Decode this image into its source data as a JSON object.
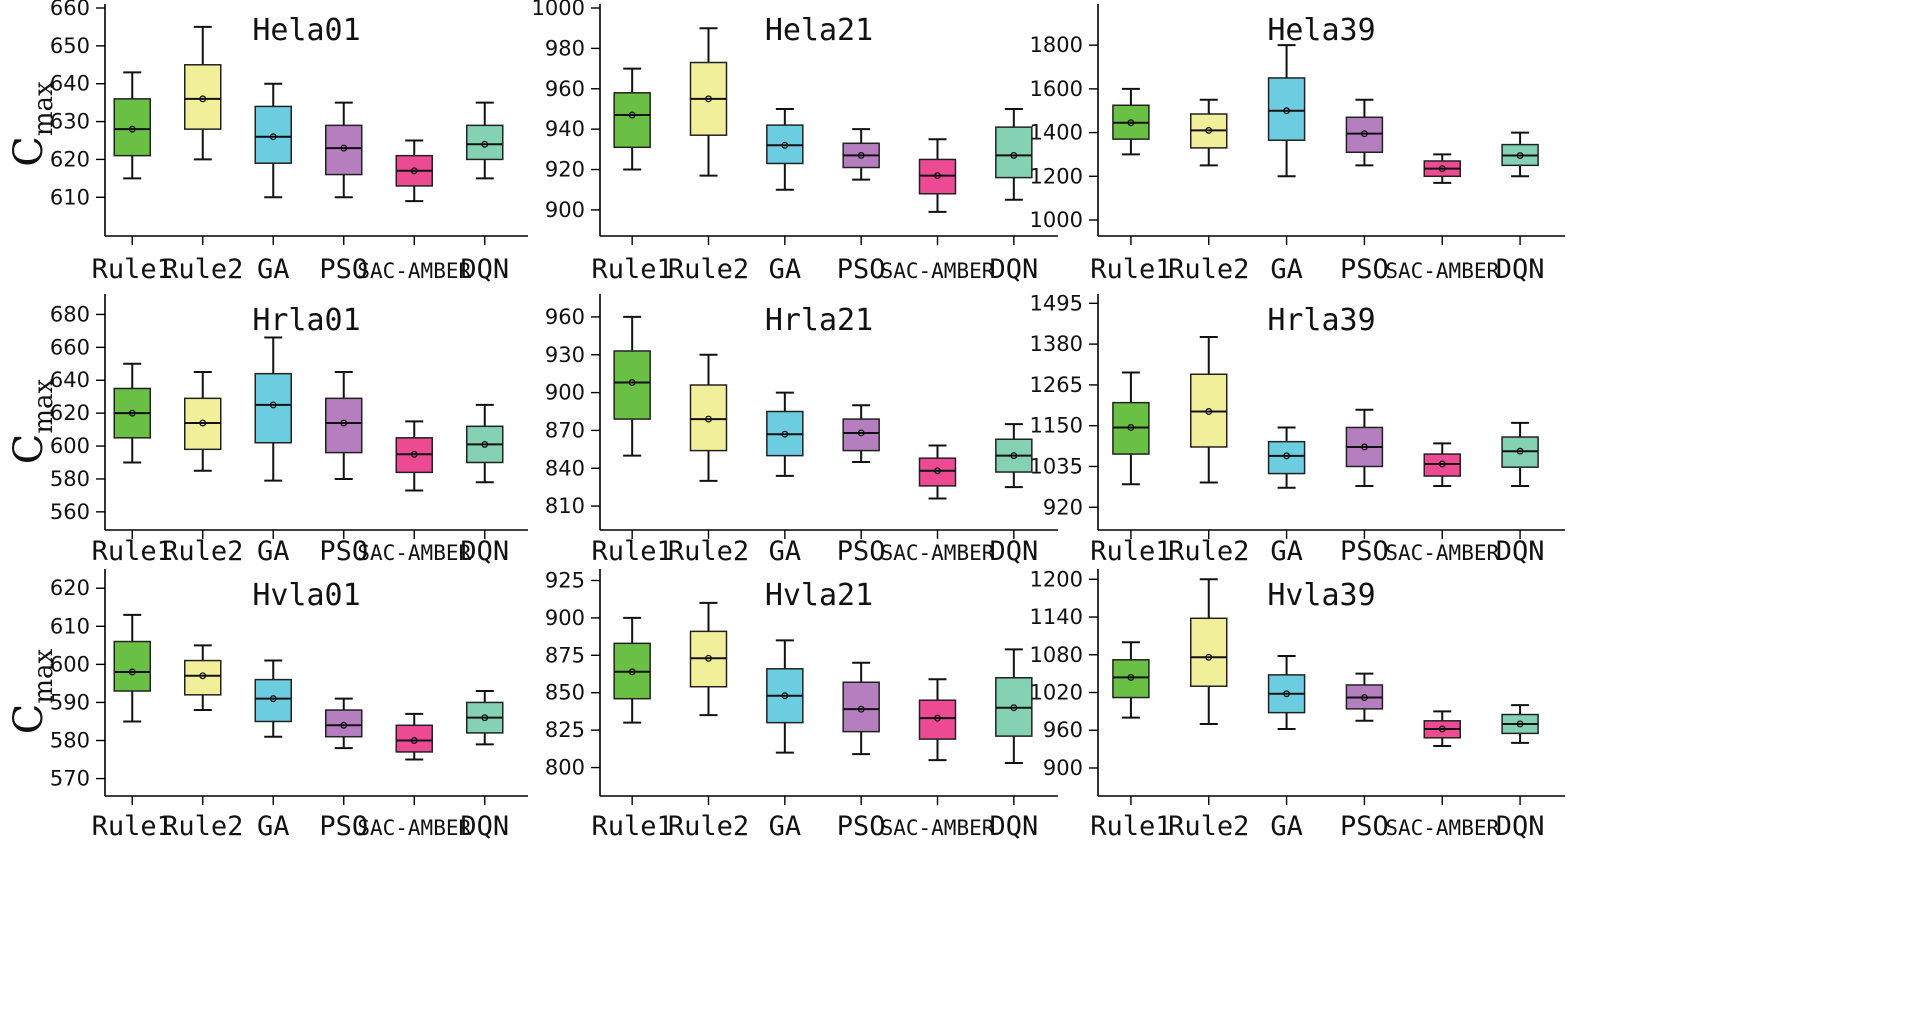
{
  "colors": {
    "Rule1": "#6abf45",
    "Rule2": "#f2ef9a",
    "GA": "#6ccde0",
    "PSO": "#b57fbf",
    "SAC-AMBER": "#ec4a93",
    "DQN": "#84d1b3"
  },
  "ylabel": {
    "main": "C",
    "sub": "max"
  },
  "chart_data": [
    {
      "type": "box",
      "title": "Hela01",
      "categories": [
        "Rule1",
        "Rule2",
        "GA",
        "PSO",
        "SAC-AMBER",
        "DQN"
      ],
      "yticks": [
        610,
        620,
        630,
        640,
        650,
        660
      ],
      "ylim": [
        604,
        660
      ],
      "boxes": [
        {
          "min": 615,
          "q1": 621,
          "median": 628,
          "q3": 636,
          "max": 643,
          "mean": 628
        },
        {
          "min": 620,
          "q1": 628,
          "median": 636,
          "q3": 645,
          "max": 655,
          "mean": 636
        },
        {
          "min": 610,
          "q1": 619,
          "median": 626,
          "q3": 634,
          "max": 640,
          "mean": 626
        },
        {
          "min": 610,
          "q1": 616,
          "median": 623,
          "q3": 629,
          "max": 635,
          "mean": 623
        },
        {
          "min": 609,
          "q1": 613,
          "median": 617,
          "q3": 621,
          "max": 625,
          "mean": 617
        },
        {
          "min": 615,
          "q1": 620,
          "median": 624,
          "q3": 629,
          "max": 635,
          "mean": 624
        }
      ]
    },
    {
      "type": "box",
      "title": "Hela21",
      "categories": [
        "Rule1",
        "Rule2",
        "GA",
        "PSO",
        "SAC-AMBER",
        "DQN"
      ],
      "yticks": [
        900,
        920,
        940,
        960,
        980,
        1000
      ],
      "ylim": [
        895,
        1000
      ],
      "boxes": [
        {
          "min": 920,
          "q1": 931,
          "median": 947,
          "q3": 958,
          "max": 970,
          "mean": 947
        },
        {
          "min": 917,
          "q1": 937,
          "median": 955,
          "q3": 973,
          "max": 990,
          "mean": 955
        },
        {
          "min": 910,
          "q1": 923,
          "median": 932,
          "q3": 942,
          "max": 950,
          "mean": 932
        },
        {
          "min": 915,
          "q1": 921,
          "median": 927,
          "q3": 933,
          "max": 940,
          "mean": 927
        },
        {
          "min": 899,
          "q1": 908,
          "median": 917,
          "q3": 925,
          "max": 935,
          "mean": 917
        },
        {
          "min": 905,
          "q1": 916,
          "median": 927,
          "q3": 941,
          "max": 950,
          "mean": 927
        }
      ]
    },
    {
      "type": "box",
      "title": "Hela39",
      "categories": [
        "Rule1",
        "Rule2",
        "GA",
        "PSO",
        "SAC-AMBER",
        "DQN"
      ],
      "yticks": [
        1000,
        1200,
        1400,
        1600,
        1800
      ],
      "ylim": [
        1000,
        1970
      ],
      "boxes": [
        {
          "min": 1300,
          "q1": 1370,
          "median": 1445,
          "q3": 1525,
          "max": 1600,
          "mean": 1445
        },
        {
          "min": 1250,
          "q1": 1330,
          "median": 1410,
          "q3": 1485,
          "max": 1550,
          "mean": 1410
        },
        {
          "min": 1200,
          "q1": 1365,
          "median": 1500,
          "q3": 1650,
          "max": 1800,
          "mean": 1500
        },
        {
          "min": 1250,
          "q1": 1310,
          "median": 1395,
          "q3": 1470,
          "max": 1550,
          "mean": 1395
        },
        {
          "min": 1170,
          "q1": 1200,
          "median": 1235,
          "q3": 1270,
          "max": 1300,
          "mean": 1235
        },
        {
          "min": 1200,
          "q1": 1250,
          "median": 1295,
          "q3": 1345,
          "max": 1400,
          "mean": 1295
        }
      ]
    },
    {
      "type": "box",
      "title": "Hrla01",
      "categories": [
        "Rule1",
        "Rule2",
        "GA",
        "PSO",
        "SAC-AMBER",
        "DQN"
      ],
      "yticks": [
        560,
        580,
        600,
        620,
        640,
        660,
        680
      ],
      "ylim": [
        552,
        690
      ],
      "boxes": [
        {
          "min": 590,
          "q1": 605,
          "median": 620,
          "q3": 635,
          "max": 650,
          "mean": 620
        },
        {
          "min": 585,
          "q1": 598,
          "median": 614,
          "q3": 629,
          "max": 645,
          "mean": 614
        },
        {
          "min": 579,
          "q1": 602,
          "median": 625,
          "q3": 644,
          "max": 666,
          "mean": 625
        },
        {
          "min": 580,
          "q1": 596,
          "median": 614,
          "q3": 629,
          "max": 645,
          "mean": 614
        },
        {
          "min": 573,
          "q1": 584,
          "median": 595,
          "q3": 605,
          "max": 615,
          "mean": 595
        },
        {
          "min": 578,
          "q1": 590,
          "median": 601,
          "q3": 612,
          "max": 625,
          "mean": 601
        }
      ]
    },
    {
      "type": "box",
      "title": "Hrla21",
      "categories": [
        "Rule1",
        "Rule2",
        "GA",
        "PSO",
        "SAC-AMBER",
        "DQN"
      ],
      "yticks": [
        810,
        840,
        870,
        900,
        930,
        960
      ],
      "ylim": [
        795,
        975
      ],
      "boxes": [
        {
          "min": 850,
          "q1": 879,
          "median": 908,
          "q3": 933,
          "max": 960,
          "mean": 908
        },
        {
          "min": 830,
          "q1": 854,
          "median": 879,
          "q3": 906,
          "max": 930,
          "mean": 879
        },
        {
          "min": 834,
          "q1": 850,
          "median": 867,
          "q3": 885,
          "max": 900,
          "mean": 867
        },
        {
          "min": 845,
          "q1": 854,
          "median": 868,
          "q3": 879,
          "max": 890,
          "mean": 868
        },
        {
          "min": 816,
          "q1": 826,
          "median": 838,
          "q3": 848,
          "max": 858,
          "mean": 838
        },
        {
          "min": 825,
          "q1": 837,
          "median": 850,
          "q3": 863,
          "max": 875,
          "mean": 850
        }
      ]
    },
    {
      "type": "box",
      "title": "Hrla39",
      "categories": [
        "Rule1",
        "Rule2",
        "GA",
        "PSO",
        "SAC-AMBER",
        "DQN"
      ],
      "yticks": [
        920,
        1035,
        1150,
        1265,
        1380,
        1495
      ],
      "ylim": [
        870,
        1510
      ],
      "boxes": [
        {
          "min": 985,
          "q1": 1070,
          "median": 1145,
          "q3": 1215,
          "max": 1300,
          "mean": 1145
        },
        {
          "min": 990,
          "q1": 1090,
          "median": 1190,
          "q3": 1295,
          "max": 1400,
          "mean": 1190
        },
        {
          "min": 975,
          "q1": 1015,
          "median": 1065,
          "q3": 1105,
          "max": 1145,
          "mean": 1065
        },
        {
          "min": 980,
          "q1": 1035,
          "median": 1090,
          "q3": 1145,
          "max": 1195,
          "mean": 1090
        },
        {
          "min": 980,
          "q1": 1008,
          "median": 1042,
          "q3": 1070,
          "max": 1100,
          "mean": 1042
        },
        {
          "min": 980,
          "q1": 1033,
          "median": 1078,
          "q3": 1118,
          "max": 1158,
          "mean": 1078
        }
      ]
    },
    {
      "type": "box",
      "title": "Hvla01",
      "categories": [
        "Rule1",
        "Rule2",
        "GA",
        "PSO",
        "SAC-AMBER",
        "DQN"
      ],
      "yticks": [
        570,
        580,
        590,
        600,
        610,
        620
      ],
      "ylim": [
        567,
        624
      ],
      "boxes": [
        {
          "min": 585,
          "q1": 593,
          "median": 598,
          "q3": 606,
          "max": 613,
          "mean": 598
        },
        {
          "min": 588,
          "q1": 592,
          "median": 597,
          "q3": 601,
          "max": 605,
          "mean": 597
        },
        {
          "min": 581,
          "q1": 585,
          "median": 591,
          "q3": 596,
          "max": 601,
          "mean": 591
        },
        {
          "min": 578,
          "q1": 581,
          "median": 584,
          "q3": 588,
          "max": 591,
          "mean": 584
        },
        {
          "min": 575,
          "q1": 577,
          "median": 580,
          "q3": 584,
          "max": 587,
          "mean": 580
        },
        {
          "min": 579,
          "q1": 582,
          "median": 586,
          "q3": 590,
          "max": 593,
          "mean": 586
        }
      ]
    },
    {
      "type": "box",
      "title": "Hvla21",
      "categories": [
        "Rule1",
        "Rule2",
        "GA",
        "PSO",
        "SAC-AMBER",
        "DQN"
      ],
      "yticks": [
        800,
        825,
        850,
        875,
        900,
        925
      ],
      "ylim": [
        785,
        930
      ],
      "boxes": [
        {
          "min": 830,
          "q1": 846,
          "median": 864,
          "q3": 883,
          "max": 900,
          "mean": 864
        },
        {
          "min": 835,
          "q1": 854,
          "median": 873,
          "q3": 891,
          "max": 910,
          "mean": 873
        },
        {
          "min": 810,
          "q1": 830,
          "median": 848,
          "q3": 866,
          "max": 885,
          "mean": 848
        },
        {
          "min": 809,
          "q1": 824,
          "median": 839,
          "q3": 857,
          "max": 870,
          "mean": 839
        },
        {
          "min": 805,
          "q1": 819,
          "median": 833,
          "q3": 845,
          "max": 859,
          "mean": 833
        },
        {
          "min": 803,
          "q1": 821,
          "median": 840,
          "q3": 860,
          "max": 879,
          "mean": 840
        }
      ]
    },
    {
      "type": "box",
      "title": "Hvla39",
      "categories": [
        "Rule1",
        "Rule2",
        "GA",
        "PSO",
        "SAC-AMBER",
        "DQN"
      ],
      "yticks": [
        900,
        960,
        1020,
        1080,
        1140,
        1200
      ],
      "ylim": [
        865,
        1210
      ],
      "boxes": [
        {
          "min": 980,
          "q1": 1012,
          "median": 1044,
          "q3": 1072,
          "max": 1100,
          "mean": 1044
        },
        {
          "min": 970,
          "q1": 1030,
          "median": 1076,
          "q3": 1138,
          "max": 1200,
          "mean": 1076
        },
        {
          "min": 962,
          "q1": 988,
          "median": 1018,
          "q3": 1048,
          "max": 1078,
          "mean": 1018
        },
        {
          "min": 975,
          "q1": 994,
          "median": 1012,
          "q3": 1032,
          "max": 1050,
          "mean": 1012
        },
        {
          "min": 935,
          "q1": 948,
          "median": 962,
          "q3": 975,
          "max": 990,
          "mean": 962
        },
        {
          "min": 940,
          "q1": 955,
          "median": 970,
          "q3": 985,
          "max": 1000,
          "mean": 970
        }
      ]
    }
  ]
}
